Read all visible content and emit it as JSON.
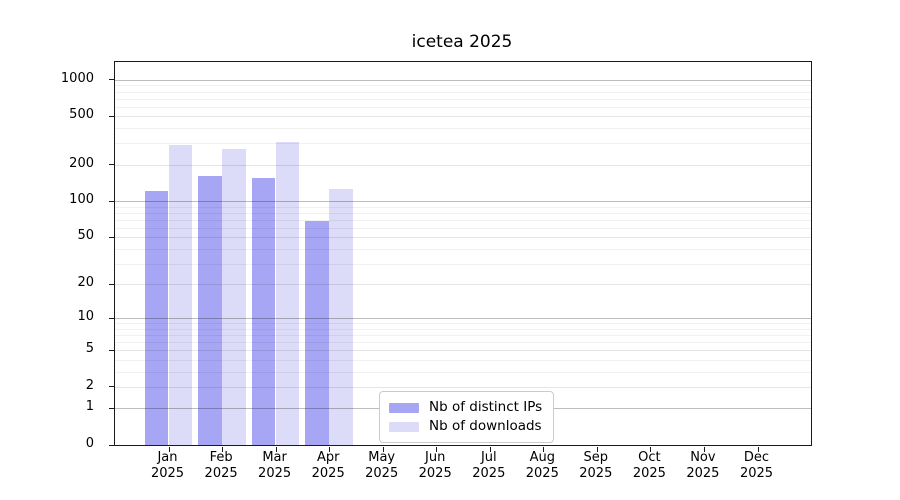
{
  "chart_data": {
    "type": "bar",
    "title": "icetea 2025",
    "scale": "log1p",
    "ylim": [
      0,
      1400
    ],
    "yticks": [
      0,
      1,
      2,
      5,
      10,
      20,
      50,
      100,
      200,
      500,
      1000
    ],
    "grid": true,
    "legend_position": "lower center",
    "categories": [
      {
        "month": "Jan",
        "year": "2025"
      },
      {
        "month": "Feb",
        "year": "2025"
      },
      {
        "month": "Mar",
        "year": "2025"
      },
      {
        "month": "Apr",
        "year": "2025"
      },
      {
        "month": "May",
        "year": "2025"
      },
      {
        "month": "Jun",
        "year": "2025"
      },
      {
        "month": "Jul",
        "year": "2025"
      },
      {
        "month": "Aug",
        "year": "2025"
      },
      {
        "month": "Sep",
        "year": "2025"
      },
      {
        "month": "Oct",
        "year": "2025"
      },
      {
        "month": "Nov",
        "year": "2025"
      },
      {
        "month": "Dec",
        "year": "2025"
      }
    ],
    "series": [
      {
        "name": "Nb of distinct IPs",
        "color": "#a6a6f4",
        "values": [
          120,
          160,
          155,
          68,
          null,
          null,
          null,
          null,
          null,
          null,
          null,
          null
        ]
      },
      {
        "name": "Nb of downloads",
        "color": "#dcdcf8",
        "values": [
          290,
          270,
          310,
          125,
          null,
          null,
          null,
          null,
          null,
          null,
          null,
          null
        ]
      }
    ],
    "colors": {
      "axis": "#1a1a1a"
    }
  }
}
